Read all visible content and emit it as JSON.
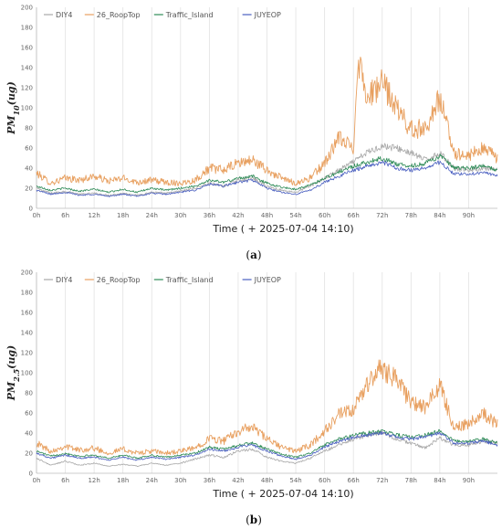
{
  "colors": {
    "DIY4": "#a8a8a8",
    "26_RoopTop": "#e8a060",
    "Traffic_Island": "#2e8b57",
    "JUYEOP": "#4a5fc0"
  },
  "chart_data": [
    {
      "type": "line",
      "panel_label": "a",
      "caption": "(a)",
      "ylabel_main": "PM",
      "ylabel_sub": "10",
      "ylabel_unit": "(ug)",
      "xlabel": "Time ( + 2025-07-04 14:10)",
      "ylim": [
        0,
        200
      ],
      "yticks": [
        0,
        20,
        40,
        60,
        80,
        100,
        120,
        140,
        160,
        180,
        200
      ],
      "x_range_hours": [
        0,
        96
      ],
      "xticks": [
        "0h",
        "6h",
        "12h",
        "18h",
        "24h",
        "30h",
        "36h",
        "42h",
        "48h",
        "54h",
        "60h",
        "66h",
        "72h",
        "78h",
        "84h",
        "90h"
      ],
      "grid": "vertical",
      "legend_position": "top-left",
      "series": [
        {
          "name": "DIY4",
          "x": [
            0,
            3,
            6,
            9,
            12,
            15,
            18,
            21,
            24,
            27,
            30,
            33,
            36,
            39,
            42,
            45,
            48,
            51,
            54,
            57,
            60,
            63,
            66,
            69,
            72,
            75,
            78,
            81,
            84,
            87,
            90,
            93,
            96
          ],
          "y": [
            20,
            15,
            17,
            14,
            15,
            13,
            15,
            13,
            16,
            15,
            17,
            20,
            25,
            22,
            28,
            30,
            22,
            18,
            16,
            22,
            30,
            38,
            46,
            56,
            62,
            60,
            55,
            48,
            55,
            40,
            38,
            40,
            38
          ]
        },
        {
          "name": "26_RoopTop",
          "x": [
            0,
            3,
            6,
            9,
            12,
            15,
            18,
            21,
            24,
            27,
            30,
            33,
            36,
            39,
            42,
            45,
            48,
            51,
            54,
            57,
            60,
            63,
            66,
            67,
            69,
            72,
            75,
            78,
            81,
            84,
            87,
            90,
            93,
            96
          ],
          "y": [
            35,
            25,
            30,
            28,
            32,
            27,
            30,
            26,
            28,
            26,
            25,
            28,
            40,
            38,
            45,
            48,
            38,
            30,
            25,
            30,
            45,
            70,
            60,
            150,
            110,
            125,
            100,
            78,
            80,
            110,
            55,
            52,
            60,
            50
          ]
        },
        {
          "name": "Traffic_Island",
          "x": [
            0,
            3,
            6,
            9,
            12,
            15,
            18,
            21,
            24,
            27,
            30,
            33,
            36,
            39,
            42,
            45,
            48,
            51,
            54,
            57,
            60,
            63,
            66,
            69,
            72,
            75,
            78,
            81,
            84,
            87,
            90,
            93,
            96
          ],
          "y": [
            22,
            18,
            20,
            17,
            19,
            16,
            19,
            16,
            20,
            18,
            20,
            22,
            28,
            26,
            30,
            32,
            25,
            21,
            19,
            23,
            30,
            36,
            42,
            46,
            50,
            44,
            42,
            45,
            52,
            40,
            40,
            42,
            38
          ]
        },
        {
          "name": "JUYEOP",
          "x": [
            0,
            3,
            6,
            9,
            12,
            15,
            18,
            21,
            24,
            27,
            30,
            33,
            36,
            39,
            42,
            45,
            48,
            51,
            54,
            57,
            60,
            63,
            66,
            69,
            72,
            75,
            78,
            81,
            84,
            87,
            90,
            93,
            96
          ],
          "y": [
            18,
            14,
            16,
            13,
            14,
            12,
            14,
            12,
            15,
            14,
            16,
            18,
            24,
            22,
            26,
            28,
            20,
            16,
            14,
            18,
            26,
            32,
            38,
            42,
            46,
            40,
            38,
            40,
            46,
            34,
            34,
            36,
            32
          ]
        }
      ]
    },
    {
      "type": "line",
      "panel_label": "b",
      "caption": "(b)",
      "ylabel_main": "PM",
      "ylabel_sub": "2.5",
      "ylabel_unit": "(ug)",
      "xlabel": "Time ( + 2025-07-04 14:10)",
      "ylim": [
        0,
        200
      ],
      "yticks": [
        0,
        20,
        40,
        60,
        80,
        100,
        120,
        140,
        160,
        180,
        200
      ],
      "x_range_hours": [
        0,
        96
      ],
      "xticks": [
        "0h",
        "6h",
        "12h",
        "18h",
        "24h",
        "30h",
        "36h",
        "42h",
        "48h",
        "54h",
        "60h",
        "66h",
        "72h",
        "78h",
        "84h",
        "90h"
      ],
      "grid": "vertical",
      "legend_position": "top-left",
      "series": [
        {
          "name": "DIY4",
          "x": [
            0,
            3,
            6,
            9,
            12,
            15,
            18,
            21,
            24,
            27,
            30,
            33,
            36,
            39,
            42,
            45,
            48,
            51,
            54,
            57,
            60,
            63,
            66,
            69,
            72,
            75,
            78,
            81,
            84,
            87,
            90,
            93,
            96
          ],
          "y": [
            15,
            8,
            12,
            8,
            10,
            7,
            9,
            7,
            10,
            8,
            10,
            14,
            18,
            16,
            22,
            24,
            16,
            12,
            10,
            15,
            22,
            28,
            34,
            38,
            40,
            34,
            30,
            25,
            35,
            28,
            28,
            32,
            30
          ]
        },
        {
          "name": "26_RoopTop",
          "x": [
            0,
            3,
            6,
            9,
            12,
            15,
            18,
            21,
            24,
            27,
            30,
            33,
            36,
            39,
            42,
            45,
            48,
            51,
            54,
            57,
            60,
            63,
            66,
            69,
            72,
            75,
            78,
            81,
            84,
            87,
            90,
            93,
            96
          ],
          "y": [
            30,
            22,
            27,
            23,
            25,
            20,
            24,
            20,
            22,
            20,
            22,
            25,
            35,
            32,
            42,
            46,
            34,
            26,
            22,
            28,
            42,
            58,
            62,
            90,
            105,
            95,
            70,
            65,
            88,
            45,
            50,
            60,
            48
          ]
        },
        {
          "name": "Traffic_Island",
          "x": [
            0,
            3,
            6,
            9,
            12,
            15,
            18,
            21,
            24,
            27,
            30,
            33,
            36,
            39,
            42,
            45,
            48,
            51,
            54,
            57,
            60,
            63,
            66,
            69,
            72,
            75,
            78,
            81,
            84,
            87,
            90,
            93,
            96
          ],
          "y": [
            22,
            17,
            20,
            17,
            18,
            15,
            18,
            15,
            18,
            16,
            18,
            20,
            26,
            24,
            28,
            30,
            24,
            19,
            16,
            20,
            28,
            34,
            38,
            40,
            42,
            38,
            36,
            38,
            42,
            32,
            32,
            34,
            30
          ]
        },
        {
          "name": "JUYEOP",
          "x": [
            0,
            3,
            6,
            9,
            12,
            15,
            18,
            21,
            24,
            27,
            30,
            33,
            36,
            39,
            42,
            45,
            48,
            51,
            54,
            57,
            60,
            63,
            66,
            69,
            72,
            75,
            78,
            81,
            84,
            87,
            90,
            93,
            96
          ],
          "y": [
            20,
            15,
            18,
            15,
            16,
            13,
            16,
            13,
            16,
            14,
            16,
            18,
            24,
            22,
            26,
            28,
            22,
            17,
            14,
            18,
            26,
            32,
            36,
            38,
            40,
            36,
            34,
            36,
            40,
            30,
            30,
            32,
            28
          ]
        }
      ]
    }
  ]
}
